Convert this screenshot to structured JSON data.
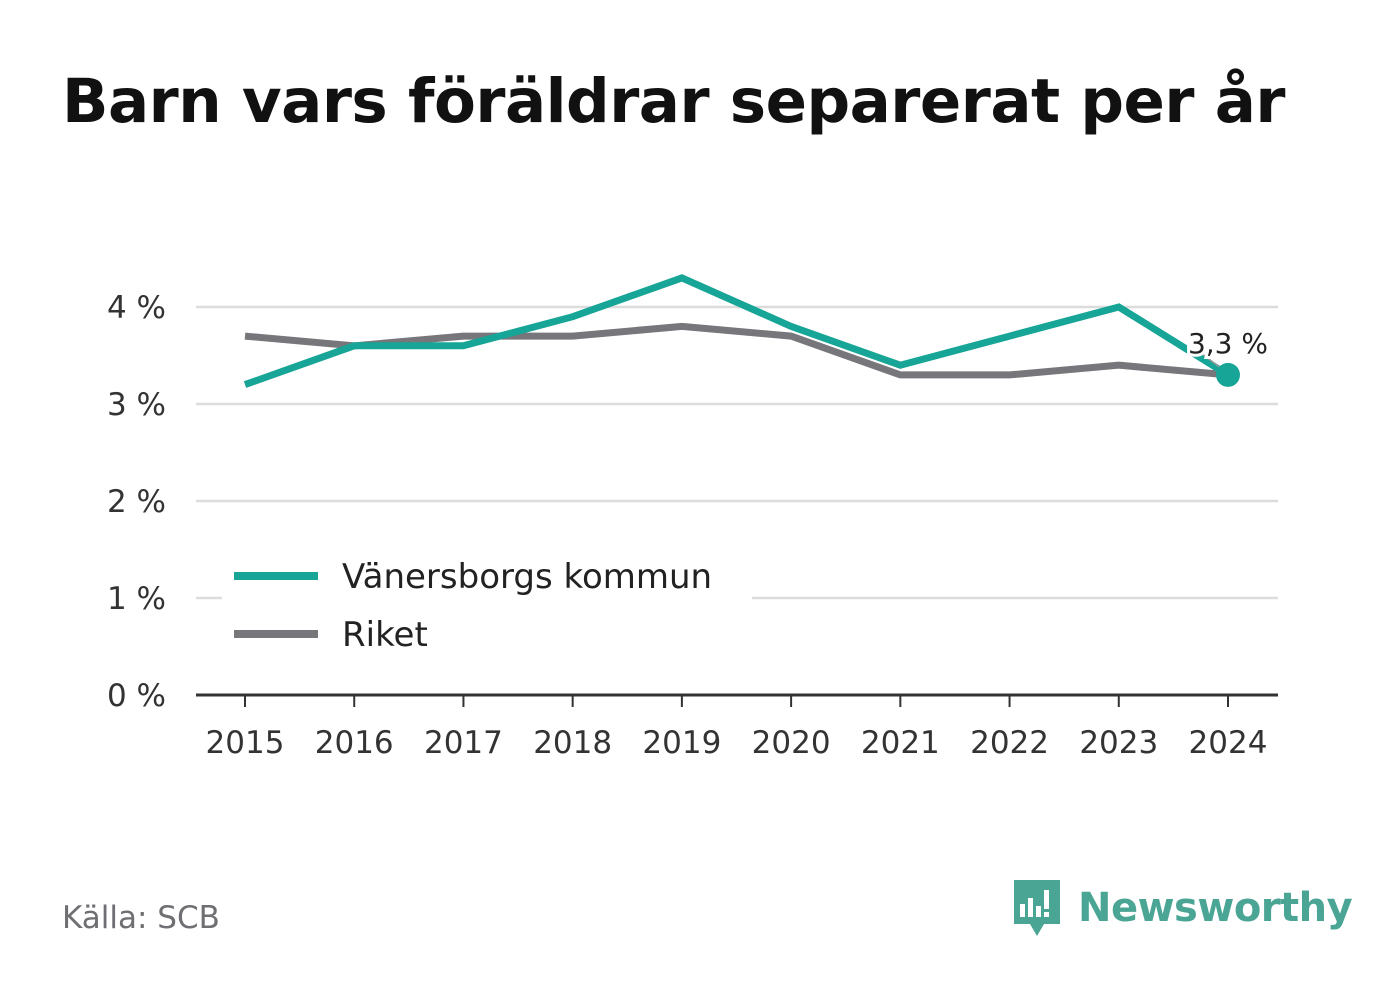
{
  "title": "Barn vars föräldrar separerat per år",
  "source": "Källa: SCB",
  "brand": {
    "name": "Newsworthy",
    "icon": "newsworthy-logo-icon",
    "color": "#4aa595"
  },
  "chart_data": {
    "type": "line",
    "title": "Barn vars föräldrar separerat per år",
    "categories": [
      "2015",
      "2016",
      "2017",
      "2018",
      "2019",
      "2020",
      "2021",
      "2022",
      "2023",
      "2024"
    ],
    "ylim": [
      0,
      4
    ],
    "yticks": [
      0,
      1,
      2,
      3,
      4
    ],
    "ytick_labels": [
      "0 %",
      "1 %",
      "2 %",
      "3 %",
      "4 %"
    ],
    "grid": true,
    "legend": "bottom-left",
    "series": [
      {
        "name": "Vänersborgs kommun",
        "color": "#16a596",
        "values": [
          3.2,
          3.6,
          3.6,
          3.9,
          4.3,
          3.8,
          3.4,
          3.7,
          4.0,
          3.3
        ]
      },
      {
        "name": "Riket",
        "color": "#76767b",
        "values": [
          3.7,
          3.6,
          3.7,
          3.7,
          3.8,
          3.7,
          3.3,
          3.3,
          3.4,
          3.3
        ]
      }
    ],
    "annotation": {
      "category": "2024",
      "series": "Vänersborgs kommun",
      "label": "3,3 %"
    }
  }
}
